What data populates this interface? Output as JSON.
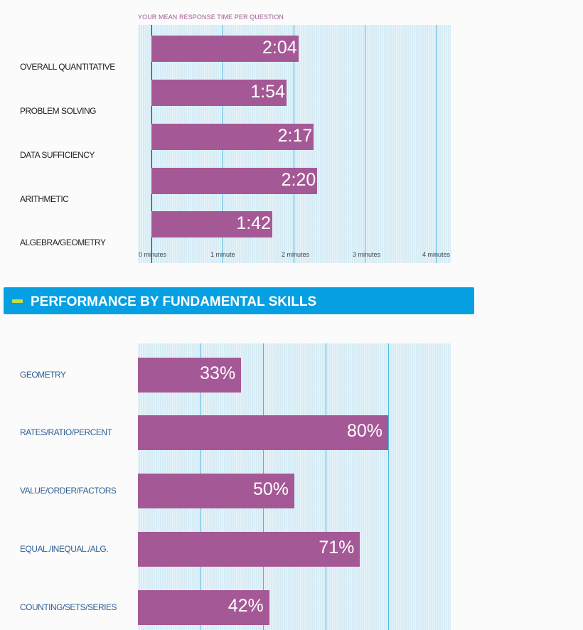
{
  "chart_data": [
    {
      "type": "bar",
      "orientation": "horizontal",
      "title": "YOUR MEAN RESPONSE TIME PER QUESTION",
      "categories": [
        "OVERALL QUANTITATIVE",
        "PROBLEM SOLVING",
        "DATA SUFFICIENCY",
        "ARITHMETIC",
        "ALGEBRA/GEOMETRY"
      ],
      "values": [
        2.0667,
        1.9,
        2.2833,
        2.3333,
        1.7
      ],
      "labels": [
        "2:04",
        "1:54",
        "2:17",
        "2:20",
        "1:42"
      ],
      "xlim": [
        0,
        4.2
      ],
      "xticks": [
        0,
        1,
        2,
        3,
        4
      ],
      "xtick_labels": [
        "0 minutes",
        "1 minute",
        "2 minutes",
        "3 minutes",
        "4 minutes"
      ],
      "unit": "minutes",
      "grid": true,
      "colors": {
        "bar": "#a55896",
        "plot_bg": "#d6ecf5",
        "grid": "#49b6df"
      }
    },
    {
      "type": "bar",
      "orientation": "horizontal",
      "title": "PERFORMANCE BY FUNDAMENTAL SKILLS",
      "categories": [
        "GEOMETRY",
        "RATES/RATIO/PERCENT",
        "VALUE/ORDER/FACTORS",
        "EQUAL./INEQUAL./ALG.",
        "COUNTING/SETS/SERIES"
      ],
      "values": [
        33,
        80,
        50,
        71,
        42
      ],
      "labels": [
        "33%",
        "80%",
        "50%",
        "71%",
        "42%"
      ],
      "xlim": [
        0,
        100
      ],
      "gridlines": [
        20,
        40,
        60,
        80
      ],
      "unit": "percent",
      "grid": true,
      "colors": {
        "bar": "#a55896",
        "plot_bg": "#d6ecf5",
        "grid": "#49b6df"
      }
    }
  ],
  "section_header": {
    "title": "PERFORMANCE BY FUNDAMENTAL SKILLS"
  },
  "colors": {
    "header_bg": "#06a0e2",
    "header_dash": "#c9dd3d",
    "label_blue": "#2f5f95"
  }
}
